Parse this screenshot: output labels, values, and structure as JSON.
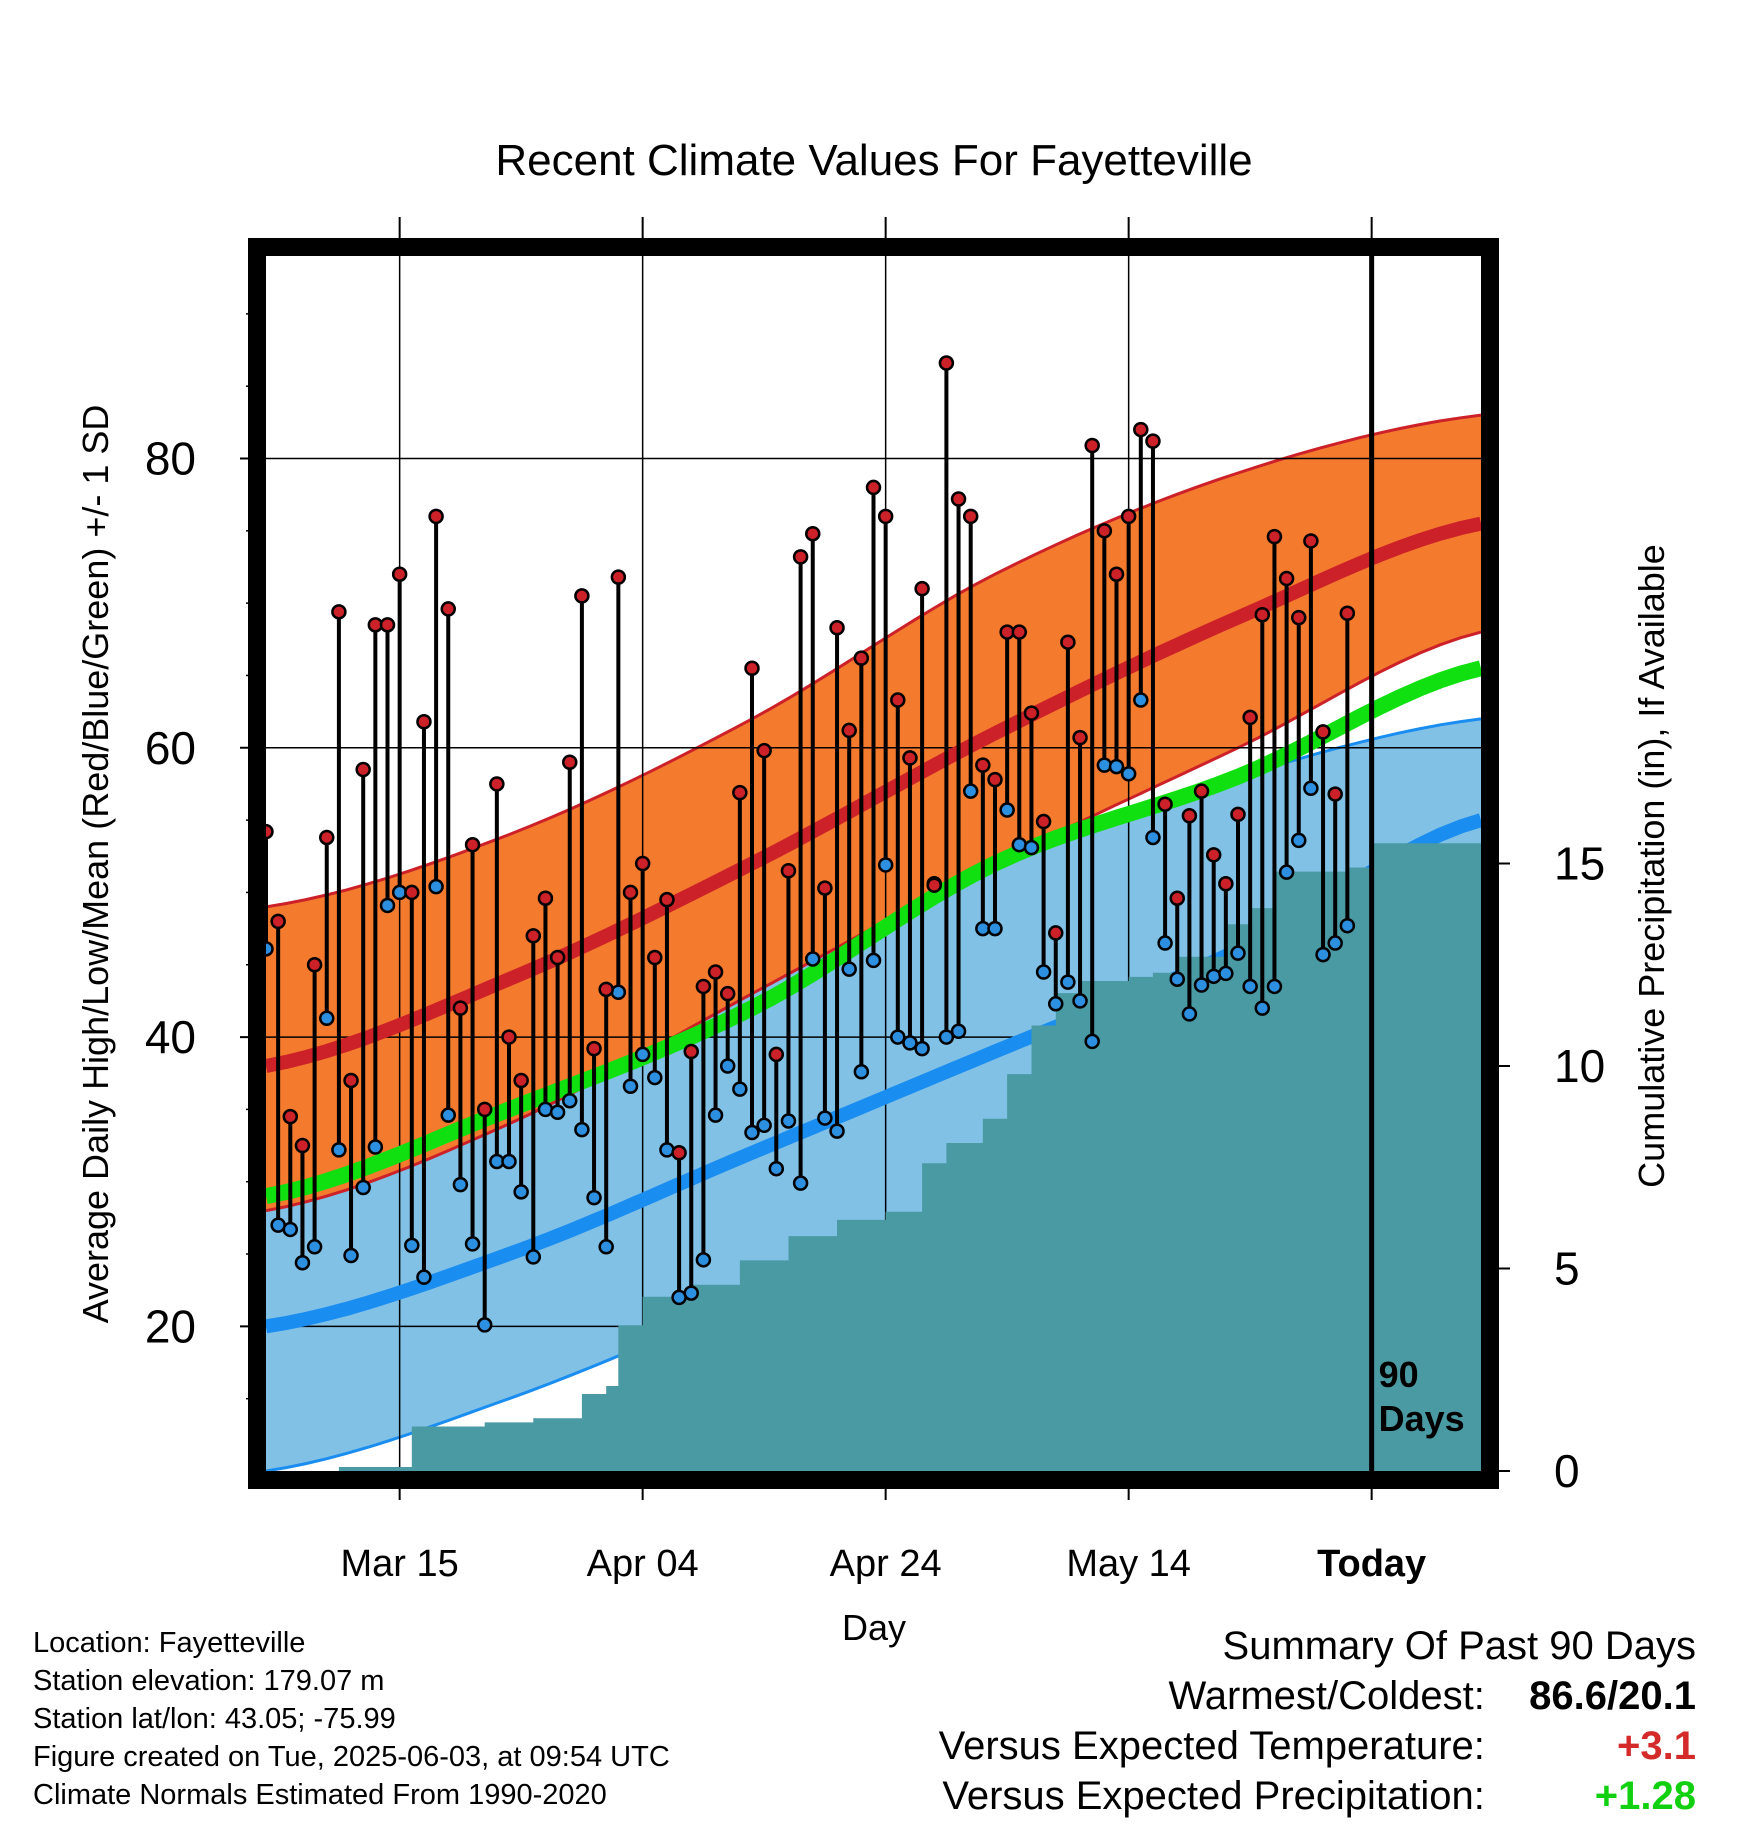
{
  "chart_data": {
    "type": "line",
    "title": "Recent Climate Values For Fayetteville",
    "xlabel": "Day",
    "ylabel": "Average Daily High/Low/Mean (Red/Blue/Green) +/- 1 SD",
    "y2label": "Cumulative Precipitation (in), If Available",
    "x_ticks": [
      "Mar 15",
      "Apr 04",
      "Apr 24",
      "May 14",
      "Today"
    ],
    "ylim": [
      10,
      94
    ],
    "y_ticks": [
      20,
      40,
      60,
      80
    ],
    "y2lim": [
      0,
      30
    ],
    "y2_ticks": [
      0,
      5,
      10,
      15
    ],
    "xlim": [
      "2025-03-04",
      "2025-06-12"
    ],
    "grid": true,
    "today": "2025-06-03",
    "today_marker_label": [
      "90",
      "Days"
    ],
    "colors": {
      "high_band": "#f47a2e",
      "high_line": "#cc2128",
      "low_band": "#82c1e6",
      "low_line": "#1a8df0",
      "mean_line": "#10e010",
      "precip_area": "#4a9aa4",
      "high_marker": "#cc2128",
      "low_marker": "#2d8fe0"
    },
    "normals": {
      "x": [
        "2025-03-04",
        "2025-03-24",
        "2025-04-13",
        "2025-05-03",
        "2025-05-23",
        "2025-06-12"
      ],
      "high_mean": [
        38,
        44,
        52,
        61,
        69,
        75.5
      ],
      "high_upper": [
        49,
        54,
        62,
        72,
        79,
        83
      ],
      "high_lower": [
        28,
        34,
        43,
        52,
        60,
        68
      ],
      "low_mean": [
        20,
        25,
        32,
        39,
        46,
        55
      ],
      "low_upper": [
        30,
        36,
        44,
        52,
        58,
        62
      ],
      "low_lower": [
        10,
        15,
        22,
        30,
        37,
        48.5
      ],
      "overall_mean": [
        29,
        35,
        42,
        52,
        58,
        65.5
      ]
    },
    "series": [
      {
        "name": "High",
        "x": [
          "2025-03-04",
          "2025-03-05",
          "2025-03-06",
          "2025-03-07",
          "2025-03-08",
          "2025-03-09",
          "2025-03-10",
          "2025-03-11",
          "2025-03-12",
          "2025-03-13",
          "2025-03-14",
          "2025-03-15",
          "2025-03-16",
          "2025-03-17",
          "2025-03-18",
          "2025-03-19",
          "2025-03-20",
          "2025-03-21",
          "2025-03-22",
          "2025-03-23",
          "2025-03-24",
          "2025-03-25",
          "2025-03-26",
          "2025-03-27",
          "2025-03-28",
          "2025-03-29",
          "2025-03-30",
          "2025-03-31",
          "2025-04-01",
          "2025-04-02",
          "2025-04-03",
          "2025-04-04",
          "2025-04-05",
          "2025-04-06",
          "2025-04-07",
          "2025-04-08",
          "2025-04-09",
          "2025-04-10",
          "2025-04-11",
          "2025-04-12",
          "2025-04-13",
          "2025-04-14",
          "2025-04-15",
          "2025-04-16",
          "2025-04-17",
          "2025-04-18",
          "2025-04-19",
          "2025-04-20",
          "2025-04-21",
          "2025-04-22",
          "2025-04-23",
          "2025-04-24",
          "2025-04-25",
          "2025-04-26",
          "2025-04-27",
          "2025-04-28",
          "2025-04-29",
          "2025-04-30",
          "2025-05-01",
          "2025-05-02",
          "2025-05-03",
          "2025-05-04",
          "2025-05-05",
          "2025-05-06",
          "2025-05-07",
          "2025-05-08",
          "2025-05-09",
          "2025-05-10",
          "2025-05-11",
          "2025-05-12",
          "2025-05-13",
          "2025-05-14",
          "2025-05-15",
          "2025-05-16",
          "2025-05-17",
          "2025-05-18",
          "2025-05-19",
          "2025-05-20",
          "2025-05-21",
          "2025-05-22",
          "2025-05-23",
          "2025-05-24",
          "2025-05-25",
          "2025-05-26",
          "2025-05-27",
          "2025-05-28",
          "2025-05-29",
          "2025-05-30",
          "2025-05-31",
          "2025-06-01"
        ],
        "values": [
          54.2,
          48,
          34.5,
          32.5,
          45,
          53.8,
          69.4,
          37,
          58.5,
          68.5,
          68.5,
          72,
          50,
          61.8,
          76,
          69.6,
          42,
          53.3,
          35,
          57.5,
          40,
          37,
          47,
          49.6,
          45.5,
          59,
          70.5,
          39.2,
          43.3,
          71.8,
          50,
          52,
          45.5,
          49.5,
          32,
          39,
          43.5,
          44.5,
          43,
          56.9,
          65.5,
          59.8,
          38.8,
          51.5,
          73.2,
          74.8,
          50.3,
          68.3,
          61.2,
          66.2,
          78,
          76,
          63.3,
          59.3,
          71,
          50.5,
          86.6,
          77.2,
          76,
          58.8,
          57.8,
          68,
          68,
          62.4,
          54.9,
          47.2,
          67.3,
          60.7,
          80.9,
          75,
          72,
          76,
          82,
          81.2,
          56.1,
          49.6,
          55.3,
          57,
          52.6,
          50.6,
          55.4,
          62.1,
          69.2,
          74.6,
          71.7,
          69,
          74.3,
          61.1,
          56.8,
          69.3
        ]
      },
      {
        "name": "Low",
        "x": [
          "2025-03-04",
          "2025-03-05",
          "2025-03-06",
          "2025-03-07",
          "2025-03-08",
          "2025-03-09",
          "2025-03-10",
          "2025-03-11",
          "2025-03-12",
          "2025-03-13",
          "2025-03-14",
          "2025-03-15",
          "2025-03-16",
          "2025-03-17",
          "2025-03-18",
          "2025-03-19",
          "2025-03-20",
          "2025-03-21",
          "2025-03-22",
          "2025-03-23",
          "2025-03-24",
          "2025-03-25",
          "2025-03-26",
          "2025-03-27",
          "2025-03-28",
          "2025-03-29",
          "2025-03-30",
          "2025-03-31",
          "2025-04-01",
          "2025-04-02",
          "2025-04-03",
          "2025-04-04",
          "2025-04-05",
          "2025-04-06",
          "2025-04-07",
          "2025-04-08",
          "2025-04-09",
          "2025-04-10",
          "2025-04-11",
          "2025-04-12",
          "2025-04-13",
          "2025-04-14",
          "2025-04-15",
          "2025-04-16",
          "2025-04-17",
          "2025-04-18",
          "2025-04-19",
          "2025-04-20",
          "2025-04-21",
          "2025-04-22",
          "2025-04-23",
          "2025-04-24",
          "2025-04-25",
          "2025-04-26",
          "2025-04-27",
          "2025-04-28",
          "2025-04-29",
          "2025-04-30",
          "2025-05-01",
          "2025-05-02",
          "2025-05-03",
          "2025-05-04",
          "2025-05-05",
          "2025-05-06",
          "2025-05-07",
          "2025-05-08",
          "2025-05-09",
          "2025-05-10",
          "2025-05-11",
          "2025-05-12",
          "2025-05-13",
          "2025-05-14",
          "2025-05-15",
          "2025-05-16",
          "2025-05-17",
          "2025-05-18",
          "2025-05-19",
          "2025-05-20",
          "2025-05-21",
          "2025-05-22",
          "2025-05-23",
          "2025-05-24",
          "2025-05-25",
          "2025-05-26",
          "2025-05-27",
          "2025-05-28",
          "2025-05-29",
          "2025-05-30",
          "2025-05-31",
          "2025-06-01"
        ],
        "values": [
          46.1,
          27,
          26.7,
          24.4,
          25.5,
          41.3,
          32.2,
          24.9,
          29.6,
          32.4,
          49.1,
          50,
          25.6,
          23.4,
          50.4,
          34.6,
          29.8,
          25.7,
          20.1,
          31.4,
          31.4,
          29.3,
          24.8,
          35,
          34.8,
          35.6,
          33.6,
          28.9,
          25.5,
          43.1,
          36.6,
          38.8,
          37.2,
          32.2,
          22,
          22.3,
          24.6,
          34.6,
          38,
          36.4,
          33.4,
          33.9,
          30.9,
          34.2,
          29.9,
          45.4,
          34.4,
          33.5,
          44.7,
          37.6,
          45.3,
          51.9,
          40,
          39.6,
          39.2,
          50.6,
          40,
          40.4,
          57,
          47.5,
          47.5,
          55.7,
          53.3,
          53.1,
          44.5,
          42.3,
          43.8,
          42.5,
          39.7,
          58.8,
          58.7,
          58.2,
          63.3,
          53.8,
          46.5,
          44,
          41.6,
          43.6,
          44.2,
          44.4,
          45.8,
          43.5,
          42,
          43.5,
          51.4,
          53.6,
          57.2,
          45.7,
          46.5,
          47.7
        ]
      }
    ],
    "precipitation": {
      "x": [
        "2025-03-04",
        "2025-03-10",
        "2025-03-15",
        "2025-03-16",
        "2025-03-22",
        "2025-03-26",
        "2025-03-30",
        "2025-04-01",
        "2025-04-02",
        "2025-04-04",
        "2025-04-08",
        "2025-04-12",
        "2025-04-16",
        "2025-04-20",
        "2025-04-24",
        "2025-04-25",
        "2025-04-27",
        "2025-04-29",
        "2025-05-02",
        "2025-05-04",
        "2025-05-06",
        "2025-05-08",
        "2025-05-10",
        "2025-05-14",
        "2025-05-16",
        "2025-05-18",
        "2025-05-22",
        "2025-05-24",
        "2025-05-26",
        "2025-06-01",
        "2025-06-03"
      ],
      "values": [
        0,
        0.1,
        0.1,
        1.1,
        1.2,
        1.3,
        1.9,
        2.1,
        3.6,
        4.3,
        4.6,
        5.2,
        5.8,
        6.2,
        6.4,
        6.4,
        7.6,
        8.1,
        8.7,
        9.8,
        11,
        11.8,
        12.1,
        12.2,
        12.3,
        12.7,
        13.5,
        13.9,
        14.8,
        14.9,
        15.5
      ],
      "total": 15.5
    }
  },
  "info": {
    "location": "Location: Fayetteville",
    "elevation": "Station elevation: 179.07 m",
    "latlon": "Station lat/lon: 43.05; -75.99",
    "created": "Figure created on Tue, 2025-06-03, at 09:54 UTC",
    "normals_period": "Climate Normals Estimated From 1990-2020"
  },
  "summary": {
    "title": "Summary Of Past 90 Days",
    "warm_cold_label": "Warmest/Coldest:",
    "warm_cold_value": "86.6/20.1",
    "temp_label": "Versus Expected Temperature:",
    "temp_value": "+3.1",
    "temp_color": "#d42a2a",
    "precip_label": "Versus Expected Precipitation:",
    "precip_value": "+1.28",
    "precip_color": "#10d010"
  }
}
